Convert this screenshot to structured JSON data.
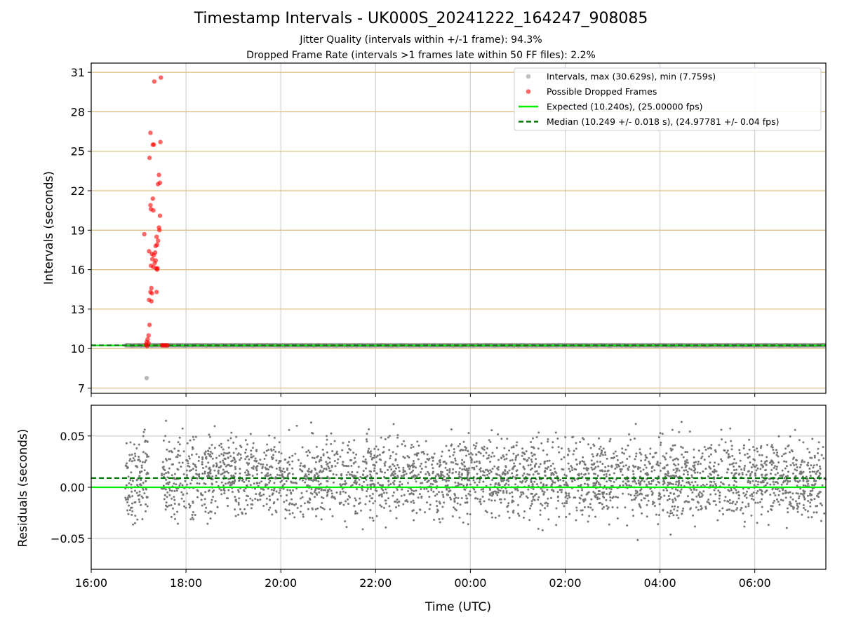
{
  "chart_data": [
    {
      "type": "scatter",
      "title": "Timestamp Intervals - UK000S_20241222_164247_908085",
      "subtitle_lines": [
        "Jitter Quality (intervals within +/-1 frame): 94.3%",
        "Dropped Frame Rate (intervals >1 frames late within 50 FF files): 2.2%"
      ],
      "xlabel": "",
      "ylabel": "Intervals (seconds)",
      "xlim_hours": [
        16.0,
        31.5
      ],
      "ylim": [
        6.6,
        31.7
      ],
      "yticks": [
        7,
        10,
        13,
        16,
        19,
        22,
        25,
        28,
        31
      ],
      "ytick_labels": [
        "7",
        "10",
        "13",
        "16",
        "19",
        "22",
        "25",
        "28",
        "31"
      ],
      "horizontal_gridlines": "tan lines at each y tick",
      "legend_position": "top-right",
      "legend": [
        "Intervals, max (30.629s), min (7.759s)",
        "Possible Dropped Frames",
        "Expected (10.240s), (25.00000 fps)",
        "Median (10.249 +/- 0.018 s), (24.97781 +/- 0.04 fps)"
      ],
      "series": [
        {
          "name": "Intervals, max (30.629s), min (7.759s)",
          "color": "#808080",
          "x_range_hours": [
            16.72,
            31.5
          ],
          "typical_value": 10.25,
          "min_point": {
            "x": 17.17,
            "y": 7.759
          }
        },
        {
          "name": "Possible Dropped Frames",
          "color": "#ff0000",
          "points": [
            [
              17.33,
              30.3
            ],
            [
              17.47,
              30.6
            ],
            [
              17.25,
              26.4
            ],
            [
              17.3,
              25.5
            ],
            [
              17.32,
              25.5
            ],
            [
              17.46,
              25.7
            ],
            [
              17.23,
              24.5
            ],
            [
              17.43,
              23.2
            ],
            [
              17.41,
              22.5
            ],
            [
              17.45,
              22.6
            ],
            [
              17.3,
              21.4
            ],
            [
              17.25,
              20.9
            ],
            [
              17.26,
              20.6
            ],
            [
              17.31,
              20.5
            ],
            [
              17.45,
              20.1
            ],
            [
              17.43,
              19.2
            ],
            [
              17.44,
              19.0
            ],
            [
              17.12,
              18.7
            ],
            [
              17.22,
              17.4
            ],
            [
              17.38,
              18.5
            ],
            [
              17.41,
              18.2
            ],
            [
              17.39,
              17.9
            ],
            [
              17.36,
              17.8
            ],
            [
              17.28,
              17.2
            ],
            [
              17.32,
              17.1
            ],
            [
              17.35,
              17.3
            ],
            [
              17.29,
              16.8
            ],
            [
              17.34,
              16.5
            ],
            [
              17.36,
              16.7
            ],
            [
              17.26,
              16.3
            ],
            [
              17.31,
              16.2
            ],
            [
              17.37,
              16.1
            ],
            [
              17.4,
              16.1
            ],
            [
              17.39,
              16.0
            ],
            [
              17.27,
              14.6
            ],
            [
              17.25,
              14.3
            ],
            [
              17.28,
              14.2
            ],
            [
              17.38,
              14.3
            ],
            [
              17.22,
              13.7
            ],
            [
              17.27,
              13.6
            ],
            [
              17.23,
              11.8
            ],
            [
              17.21,
              11.0
            ],
            [
              17.19,
              10.7
            ],
            [
              17.17,
              10.5
            ],
            [
              17.15,
              10.3
            ],
            [
              17.18,
              10.2
            ],
            [
              17.21,
              10.4
            ],
            [
              17.49,
              10.25
            ],
            [
              17.52,
              10.25
            ],
            [
              17.55,
              10.25
            ],
            [
              17.58,
              10.25
            ],
            [
              17.61,
              10.25
            ]
          ]
        },
        {
          "name": "Expected (10.240s), (25.00000 fps)",
          "color": "#00ee00",
          "value": 10.24
        },
        {
          "name": "Median (10.249 +/- 0.018 s), (24.97781 +/- 0.04 fps)",
          "color": "#007700",
          "value": 10.249
        }
      ]
    },
    {
      "type": "scatter",
      "xlabel": "Time (UTC)",
      "ylabel": "Residuals (seconds)",
      "xlim_hours": [
        16.0,
        31.5
      ],
      "ylim": [
        -0.08,
        0.08
      ],
      "yticks": [
        0.05,
        0.0,
        -0.05
      ],
      "ytick_labels": [
        "0.05",
        "0.00",
        "−0.05"
      ],
      "xticks_hours": [
        16,
        18,
        20,
        22,
        24,
        26,
        28,
        30
      ],
      "xtick_labels": [
        "16:00",
        "18:00",
        "20:00",
        "22:00",
        "00:00",
        "02:00",
        "04:00",
        "06:00"
      ],
      "grid": true,
      "series": [
        {
          "name": "",
          "color": "#787878",
          "x_range_hours": [
            16.72,
            31.5
          ],
          "center": 0.009,
          "spread": 0.02
        },
        {
          "name": "",
          "color": "#00ee00",
          "value": 0.0
        },
        {
          "name": "",
          "color": "#007700",
          "value": 0.009
        }
      ]
    }
  ]
}
